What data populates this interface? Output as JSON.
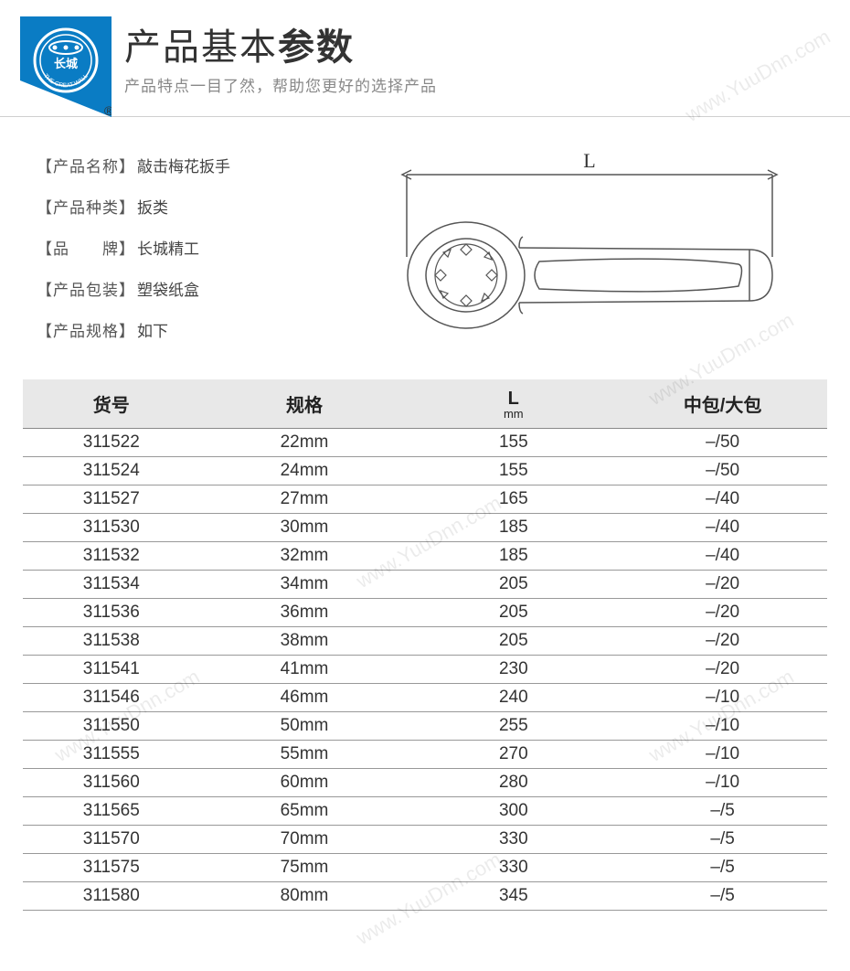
{
  "header": {
    "title_plain": "产品基本",
    "title_bold": "参数",
    "subtitle": "产品特点一目了然，帮助您更好的选择产品",
    "brand_circle_text": "THE GREAT WALL",
    "brand_cn": "长城",
    "reg_mark": "®",
    "logo_bg_color": "#0a7cc4",
    "logo_text_color": "#ffffff",
    "title_color": "#333333",
    "subtitle_color": "#888888"
  },
  "info": [
    {
      "label": "【产品名称】",
      "value": "敲击梅花扳手"
    },
    {
      "label": "【产品种类】",
      "value": "扳类"
    },
    {
      "label": "【品　　牌】",
      "value": "长城精工"
    },
    {
      "label": "【产品包装】",
      "value": "塑袋纸盒"
    },
    {
      "label": "【产品规格】",
      "value": "如下"
    }
  ],
  "diagram": {
    "dim_label": "L",
    "stroke_color": "#555555",
    "fill_color": "#ffffff"
  },
  "table": {
    "header_bg": "#e8e8e8",
    "border_color": "#999999",
    "columns": [
      {
        "key": "sku",
        "label": "货号",
        "sub": ""
      },
      {
        "key": "spec",
        "label": "规格",
        "sub": ""
      },
      {
        "key": "len",
        "label": "L",
        "sub": "mm"
      },
      {
        "key": "pack",
        "label": "中包/大包",
        "sub": ""
      }
    ],
    "rows": [
      {
        "sku": "311522",
        "spec": "22mm",
        "len": "155",
        "pack": "–/50"
      },
      {
        "sku": "311524",
        "spec": "24mm",
        "len": "155",
        "pack": "–/50"
      },
      {
        "sku": "311527",
        "spec": "27mm",
        "len": "165",
        "pack": "–/40"
      },
      {
        "sku": "311530",
        "spec": "30mm",
        "len": "185",
        "pack": "–/40"
      },
      {
        "sku": "311532",
        "spec": "32mm",
        "len": "185",
        "pack": "–/40"
      },
      {
        "sku": "311534",
        "spec": "34mm",
        "len": "205",
        "pack": "–/20"
      },
      {
        "sku": "311536",
        "spec": "36mm",
        "len": "205",
        "pack": "–/20"
      },
      {
        "sku": "311538",
        "spec": "38mm",
        "len": "205",
        "pack": "–/20"
      },
      {
        "sku": "311541",
        "spec": "41mm",
        "len": "230",
        "pack": "–/20"
      },
      {
        "sku": "311546",
        "spec": "46mm",
        "len": "240",
        "pack": "–/10"
      },
      {
        "sku": "311550",
        "spec": "50mm",
        "len": "255",
        "pack": "–/10"
      },
      {
        "sku": "311555",
        "spec": "55mm",
        "len": "270",
        "pack": "–/10"
      },
      {
        "sku": "311560",
        "spec": "60mm",
        "len": "280",
        "pack": "–/10"
      },
      {
        "sku": "311565",
        "spec": "65mm",
        "len": "300",
        "pack": "–/5"
      },
      {
        "sku": "311570",
        "spec": "70mm",
        "len": "330",
        "pack": "–/5"
      },
      {
        "sku": "311575",
        "spec": "75mm",
        "len": "330",
        "pack": "–/5"
      },
      {
        "sku": "311580",
        "spec": "80mm",
        "len": "345",
        "pack": "–/5"
      }
    ]
  },
  "watermark": {
    "text": "www.YuuDnn.com",
    "color": "rgba(0,0,0,0.08)"
  }
}
